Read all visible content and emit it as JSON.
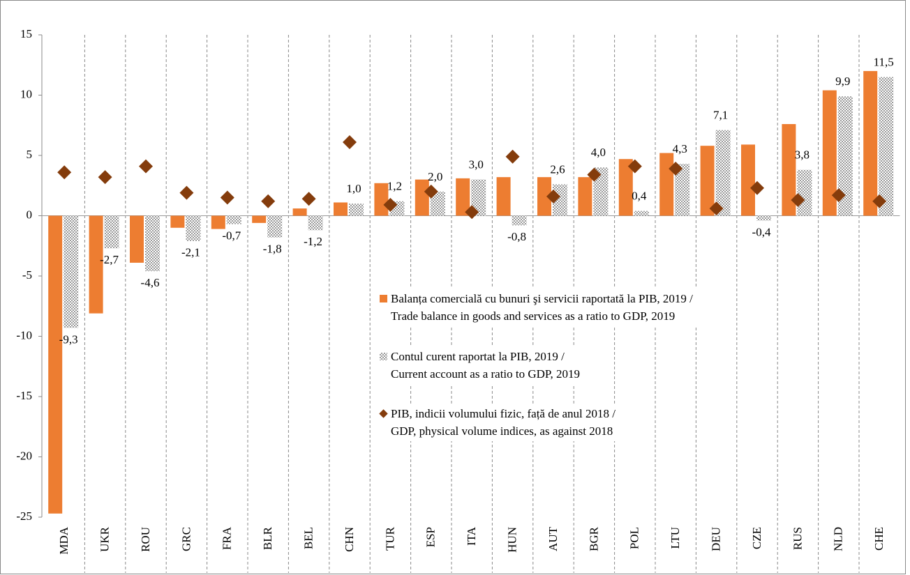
{
  "chart_data": {
    "type": "bar",
    "categories": [
      "MDA",
      "UKR",
      "ROU",
      "GRC",
      "FRA",
      "BLR",
      "BEL",
      "CHN",
      "TUR",
      "ESP",
      "ITA",
      "HUN",
      "AUT",
      "BGR",
      "POL",
      "LTU",
      "DEU",
      "CZE",
      "RUS",
      "NLD",
      "CHE"
    ],
    "series": [
      {
        "name": "Balanța comercială cu bunuri şi servicii raportată la PIB,  2019 /\nTrade balance in goods and services as a ratio to GDP, 2019",
        "color": "#ed7d31",
        "kind": "bar",
        "values": [
          -24.7,
          -8.1,
          -3.9,
          -1.0,
          -1.1,
          -0.6,
          0.6,
          1.1,
          2.7,
          3.0,
          3.1,
          3.2,
          3.2,
          3.2,
          4.7,
          5.2,
          5.8,
          5.9,
          7.6,
          10.4,
          12.0
        ]
      },
      {
        "name": "Contul curent raportat la PIB, 2019 /\nCurrent account as a ratio to GDP, 2019",
        "color": "#a6a6a6",
        "kind": "pattern-bar",
        "values": [
          -9.3,
          -2.7,
          -4.6,
          -2.1,
          -0.7,
          -1.8,
          -1.2,
          1.0,
          1.2,
          2.0,
          3.0,
          -0.8,
          2.6,
          4.0,
          0.4,
          4.3,
          7.1,
          -0.4,
          3.8,
          9.9,
          11.5
        ],
        "value_labels": [
          "-9,3",
          "-2,7",
          "-4,6",
          "-2,1",
          "-0,7",
          "-1,8",
          "-1,2",
          "1,0",
          "1,2",
          "2,0",
          "3,0",
          "-0,8",
          "2,6",
          "4,0",
          "0,4",
          "4,3",
          "7,1",
          "-0,4",
          "3,8",
          "9,9",
          "11,5"
        ]
      },
      {
        "name": "PIB, indicii volumului fizic, față de anul  2018 /\nGDP, physical volume indices, as against 2018",
        "color": "#843c0c",
        "kind": "diamond",
        "values": [
          3.6,
          3.2,
          4.1,
          1.9,
          1.5,
          1.2,
          1.4,
          6.1,
          0.9,
          2.0,
          0.3,
          4.9,
          1.6,
          3.4,
          4.1,
          3.9,
          0.6,
          2.3,
          1.3,
          1.7,
          1.2
        ]
      }
    ],
    "ylim": [
      -25,
      15
    ],
    "yticks": [
      -25,
      -20,
      -15,
      -10,
      -5,
      0,
      5,
      10,
      15
    ],
    "grid": false
  }
}
